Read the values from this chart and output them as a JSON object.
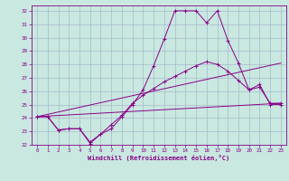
{
  "xlabel": "Windchill (Refroidissement éolien,°C)",
  "xlim": [
    -0.5,
    23.5
  ],
  "ylim": [
    22,
    32.4
  ],
  "yticks": [
    22,
    23,
    24,
    25,
    26,
    27,
    28,
    29,
    30,
    31,
    32
  ],
  "xticks": [
    0,
    1,
    2,
    3,
    4,
    5,
    6,
    7,
    8,
    9,
    10,
    11,
    12,
    13,
    14,
    15,
    16,
    17,
    18,
    19,
    20,
    21,
    22,
    23
  ],
  "bg_color": "#c8e8e0",
  "grid_color": "#aab8cc",
  "line_color": "#880088",
  "line1_x": [
    0,
    1,
    2,
    3,
    4,
    5,
    6,
    7,
    8,
    9,
    10,
    11,
    12,
    13,
    14,
    15,
    16,
    17,
    18,
    19,
    20,
    21,
    22,
    23
  ],
  "line1_y": [
    24.1,
    24.1,
    23.1,
    23.2,
    23.2,
    22.1,
    22.8,
    23.2,
    24.1,
    25.0,
    26.1,
    27.9,
    29.9,
    32.0,
    32.0,
    32.0,
    31.1,
    32.0,
    29.8,
    28.1,
    26.1,
    26.5,
    25.0,
    25.0
  ],
  "line2_x": [
    0,
    1,
    2,
    3,
    4,
    5,
    6,
    7,
    8,
    9,
    10,
    11,
    12,
    13,
    14,
    15,
    16,
    17,
    18,
    19,
    20,
    21,
    22,
    23
  ],
  "line2_y": [
    24.1,
    24.1,
    23.1,
    23.2,
    23.2,
    22.2,
    22.8,
    23.5,
    24.2,
    25.1,
    25.7,
    26.2,
    26.7,
    27.1,
    27.5,
    27.9,
    28.2,
    28.0,
    27.5,
    26.8,
    26.1,
    26.3,
    25.1,
    25.1
  ],
  "line3_x": [
    0,
    23
  ],
  "line3_y": [
    24.1,
    28.1
  ],
  "line4_x": [
    0,
    23
  ],
  "line4_y": [
    24.1,
    25.1
  ]
}
